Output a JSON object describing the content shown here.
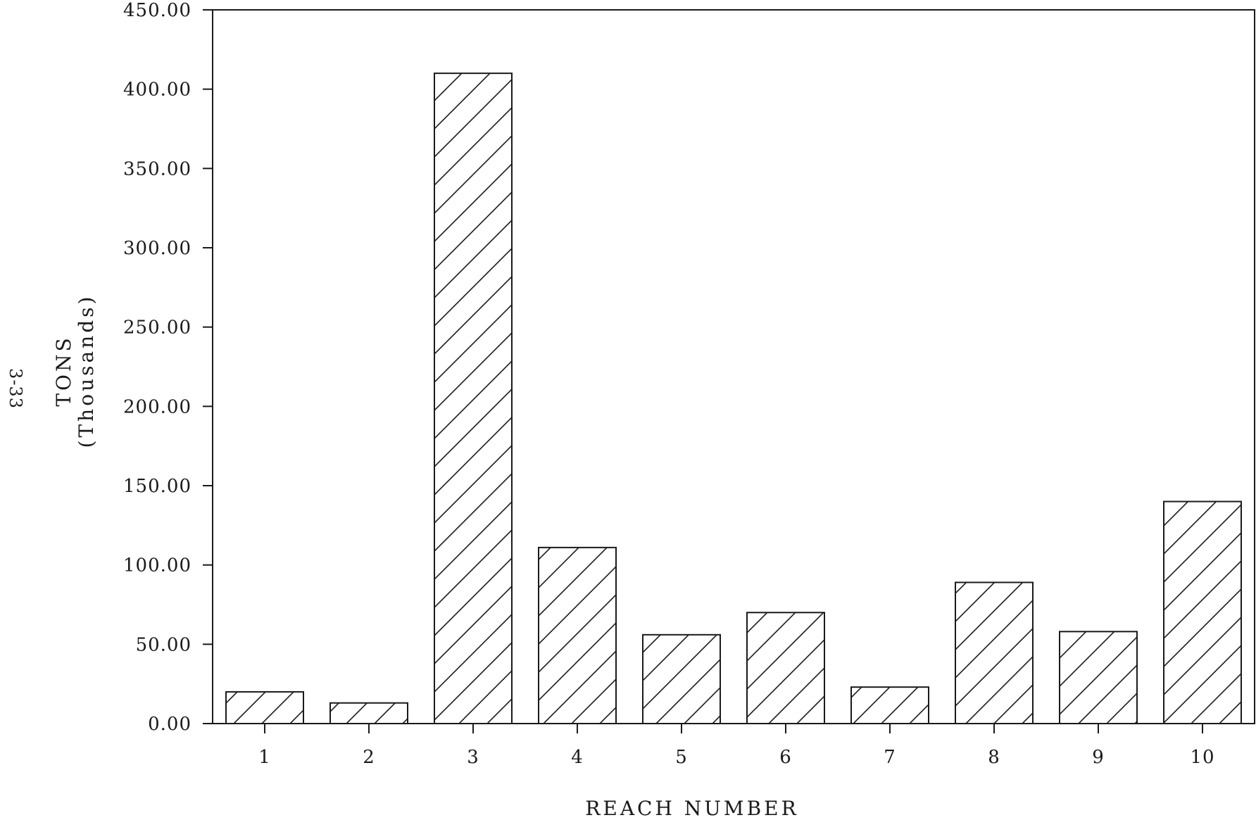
{
  "chart_data": {
    "type": "bar",
    "title": "",
    "xlabel": "REACH NUMBER",
    "ylabel": "TONS",
    "ylabel_sub": "(Thousands)",
    "categories": [
      "1",
      "2",
      "3",
      "4",
      "5",
      "6",
      "7",
      "8",
      "9",
      "10"
    ],
    "values": [
      20,
      13,
      410,
      111,
      56,
      70,
      23,
      89,
      58,
      140
    ],
    "yticks": [
      "0.00",
      "50.00",
      "100.00",
      "150.00",
      "200.00",
      "250.00",
      "300.00",
      "350.00",
      "400.00",
      "450.00"
    ],
    "ylim": [
      0,
      450
    ],
    "grid": false,
    "legend": "none",
    "bar_fill": "diagonal-hatch",
    "colors": {
      "ink": "#1a1a1a",
      "background": "#ffffff"
    }
  },
  "page": {
    "page_number": "3-33"
  }
}
